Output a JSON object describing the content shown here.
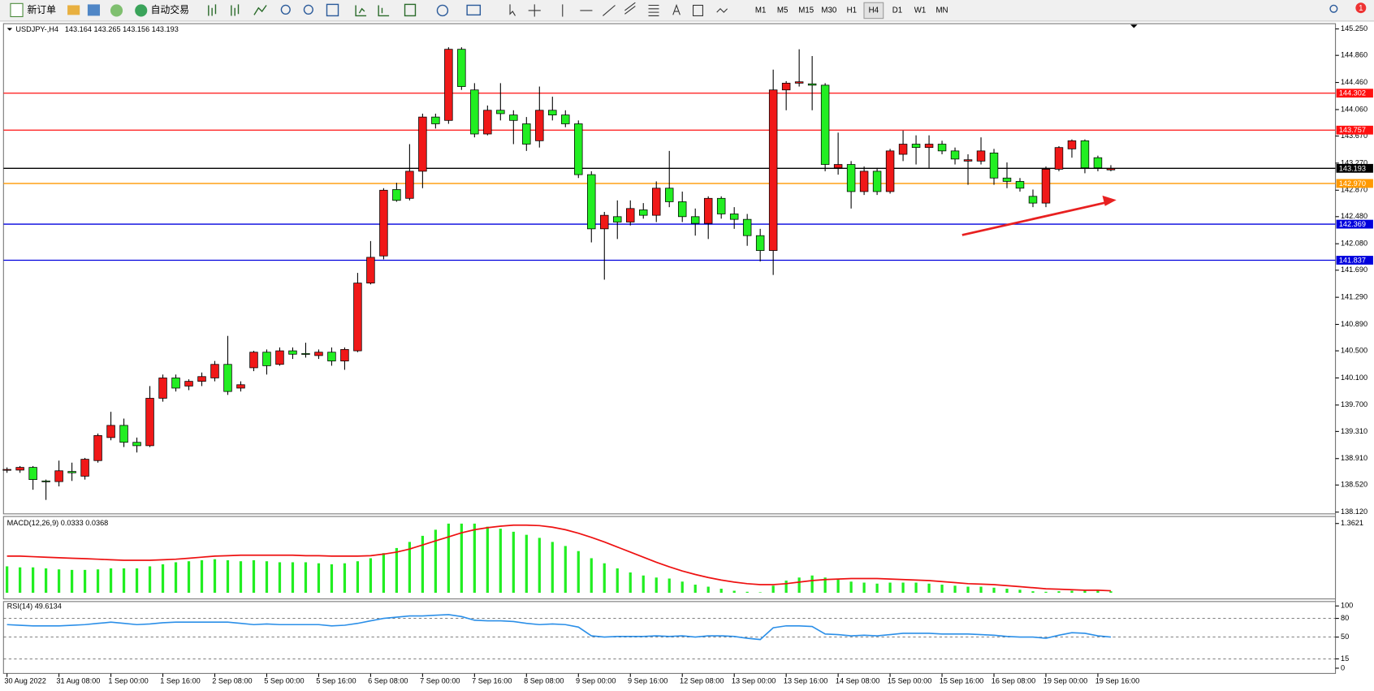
{
  "toolbar": {
    "buttons": [
      "新订单",
      "自动交易"
    ],
    "timeframes": [
      "M1",
      "M5",
      "M15",
      "M30",
      "H1",
      "H4",
      "D1",
      "W1",
      "MN"
    ],
    "active": "H4",
    "notifications": 1
  },
  "chart_data": [
    {
      "type": "candlestick",
      "title": "USDJPY-,H4",
      "subtitle": "143.164 143.265 143.156 143.193",
      "categories": [
        "30 Aug 2022",
        null,
        null,
        null,
        "31 Aug 08:00",
        null,
        null,
        null,
        "1 Sep 00:00",
        null,
        null,
        null,
        "1 Sep 16:00",
        null,
        null,
        null,
        "2 Sep 08:00",
        null,
        null,
        null,
        "5 Sep 00:00",
        null,
        null,
        null,
        "5 Sep 16:00",
        null,
        null,
        null,
        "6 Sep 08:00",
        null,
        null,
        null,
        "7 Sep 00:00",
        null,
        null,
        null,
        "7 Sep 16:00",
        null,
        null,
        null,
        "8 Sep 08:00",
        null,
        null,
        null,
        "9 Sep 00:00",
        null,
        null,
        null,
        "9 Sep 16:00",
        null,
        null,
        null,
        "12 Sep 08:00",
        null,
        null,
        null,
        "13 Sep 00:00",
        null,
        null,
        null,
        "13 Sep 16:00",
        null,
        null,
        null,
        "14 Sep 08:00",
        null,
        null,
        null,
        "15 Sep 00:00",
        null,
        null,
        null,
        "15 Sep 16:00",
        null,
        null,
        null,
        "16 Sep 08:00",
        null,
        null,
        null,
        "19 Sep 00:00",
        null,
        null,
        null,
        "19 Sep 16:00",
        null
      ],
      "open": [
        138.74,
        138.74,
        138.78,
        138.58,
        138.57,
        138.72,
        138.65,
        138.88,
        139.22,
        139.4,
        139.15,
        139.1,
        139.8,
        140.1,
        139.98,
        140.05,
        140.1,
        140.3,
        139.95,
        140.25,
        140.48,
        140.3,
        140.5,
        140.46,
        140.43,
        140.48,
        140.35,
        140.5,
        141.5,
        141.9,
        142.88,
        142.75,
        143.15,
        143.95,
        143.9,
        144.95,
        144.35,
        143.7,
        144.05,
        143.98,
        143.85,
        143.6,
        144.05,
        143.98,
        143.85,
        143.1,
        142.3,
        142.48,
        142.4,
        142.58,
        142.5,
        142.9,
        142.7,
        142.48,
        142.38,
        142.75,
        142.52,
        142.44,
        142.2,
        141.98,
        144.35,
        144.45,
        144.44,
        144.42,
        143.2,
        143.25,
        142.85,
        143.15,
        142.85,
        143.4,
        143.55,
        143.5,
        143.55,
        143.45,
        143.3,
        143.3,
        143.42,
        143.05,
        143.0,
        142.78,
        142.68,
        143.18,
        143.48,
        143.6,
        143.35,
        143.17
      ],
      "high": [
        138.78,
        138.8,
        138.8,
        138.6,
        138.88,
        138.85,
        138.92,
        139.28,
        139.6,
        139.5,
        139.22,
        139.98,
        140.15,
        140.15,
        140.08,
        140.18,
        140.35,
        140.72,
        140.05,
        140.5,
        140.52,
        140.55,
        140.55,
        140.62,
        140.52,
        140.55,
        140.55,
        141.65,
        142.12,
        142.9,
        142.98,
        143.55,
        144.0,
        144.0,
        144.98,
        144.98,
        144.45,
        144.12,
        144.45,
        144.05,
        143.95,
        144.4,
        144.25,
        144.05,
        143.9,
        143.15,
        142.55,
        142.72,
        142.72,
        142.68,
        143.0,
        143.45,
        142.85,
        142.6,
        142.78,
        142.78,
        142.62,
        142.52,
        142.3,
        144.65,
        144.48,
        144.95,
        144.85,
        144.45,
        143.72,
        143.3,
        143.22,
        143.2,
        143.48,
        143.75,
        143.68,
        143.68,
        143.6,
        143.5,
        143.4,
        143.65,
        143.48,
        143.28,
        143.05,
        142.88,
        143.22,
        143.52,
        143.62,
        143.62,
        143.38,
        143.24
      ],
      "low": [
        138.7,
        138.7,
        138.45,
        138.3,
        138.5,
        138.58,
        138.6,
        138.85,
        139.18,
        139.08,
        139.0,
        139.08,
        139.75,
        139.9,
        139.92,
        139.98,
        140.05,
        139.85,
        139.9,
        140.2,
        140.15,
        140.28,
        140.38,
        140.4,
        140.38,
        140.28,
        140.22,
        140.48,
        141.48,
        141.85,
        142.7,
        142.72,
        142.9,
        143.78,
        143.85,
        144.35,
        143.65,
        143.68,
        143.9,
        143.55,
        143.45,
        143.5,
        143.9,
        143.8,
        143.05,
        142.1,
        141.55,
        142.15,
        142.35,
        142.45,
        142.4,
        142.62,
        142.4,
        142.2,
        142.15,
        142.45,
        142.3,
        142.05,
        141.82,
        141.62,
        144.05,
        144.4,
        144.05,
        143.15,
        143.1,
        142.6,
        142.8,
        142.8,
        142.82,
        143.3,
        143.25,
        143.2,
        143.4,
        143.25,
        142.95,
        143.25,
        142.95,
        142.9,
        142.85,
        142.62,
        142.62,
        143.15,
        143.35,
        143.12,
        143.15,
        143.15
      ],
      "close": [
        138.75,
        138.78,
        138.6,
        138.57,
        138.73,
        138.7,
        138.9,
        139.25,
        139.4,
        139.15,
        139.1,
        139.8,
        140.1,
        139.95,
        140.05,
        140.12,
        140.3,
        139.9,
        140.0,
        140.48,
        140.28,
        140.5,
        140.45,
        140.45,
        140.48,
        140.35,
        140.52,
        141.5,
        141.88,
        142.87,
        142.72,
        143.15,
        143.95,
        143.85,
        144.95,
        144.4,
        143.7,
        144.05,
        144.0,
        143.9,
        143.55,
        144.05,
        143.98,
        143.85,
        143.1,
        142.3,
        142.5,
        142.4,
        142.6,
        142.5,
        142.9,
        142.7,
        142.48,
        142.38,
        142.75,
        142.52,
        142.44,
        142.2,
        141.98,
        144.35,
        144.45,
        144.47,
        144.42,
        143.25,
        143.25,
        142.85,
        143.15,
        142.85,
        143.45,
        143.55,
        143.5,
        143.55,
        143.45,
        143.33,
        143.32,
        143.45,
        143.05,
        143.0,
        142.9,
        142.68,
        143.18,
        143.5,
        143.6,
        143.2,
        143.2,
        143.19
      ],
      "up_color": "#f01818",
      "down_color": "#22ee22",
      "ylim": [
        138.12,
        145.25
      ],
      "yticks": [
        {
          "value": 145.25,
          "label": "145.250"
        },
        {
          "value": 144.86,
          "label": "144.860"
        },
        {
          "value": 144.46,
          "label": "144.460"
        },
        {
          "value": 144.06,
          "label": "144.060"
        },
        {
          "value": 143.67,
          "label": "143.670"
        },
        {
          "value": 143.27,
          "label": "143.270"
        },
        {
          "value": 142.87,
          "label": "142.870"
        },
        {
          "value": 142.48,
          "label": "142.480"
        },
        {
          "value": 142.08,
          "label": "142.080"
        },
        {
          "value": 141.69,
          "label": "141.690"
        },
        {
          "value": 141.29,
          "label": "141.290"
        },
        {
          "value": 140.89,
          "label": "140.890"
        },
        {
          "value": 140.5,
          "label": "140.500"
        },
        {
          "value": 140.1,
          "label": "140.100"
        },
        {
          "value": 139.7,
          "label": "139.700"
        },
        {
          "value": 139.31,
          "label": "139.310"
        },
        {
          "value": 138.91,
          "label": "138.910"
        },
        {
          "value": 138.52,
          "label": "138.520"
        },
        {
          "value": 138.12,
          "label": "138.120"
        }
      ],
      "levels": [
        {
          "value": 144.302,
          "label": "144.302",
          "color": "#ff1010"
        },
        {
          "value": 143.757,
          "label": "143.757",
          "color": "#ff1010"
        },
        {
          "value": 143.193,
          "label": "143.193",
          "color": "#000000"
        },
        {
          "value": 142.97,
          "label": "142.970",
          "color": "#ff9900"
        },
        {
          "value": 142.369,
          "label": "142.369",
          "color": "#0000dd"
        },
        {
          "value": 141.837,
          "label": "141.837",
          "color": "#0000dd"
        }
      ]
    },
    {
      "type": "macd",
      "title": "MACD(12,26,9) 0.0333 0.0368",
      "histogram": [
        0.52,
        0.5,
        0.5,
        0.48,
        0.46,
        0.45,
        0.45,
        0.46,
        0.48,
        0.48,
        0.48,
        0.52,
        0.56,
        0.6,
        0.62,
        0.64,
        0.66,
        0.64,
        0.62,
        0.64,
        0.62,
        0.6,
        0.6,
        0.6,
        0.58,
        0.56,
        0.58,
        0.62,
        0.68,
        0.78,
        0.88,
        1.0,
        1.12,
        1.24,
        1.36,
        1.36,
        1.36,
        1.3,
        1.26,
        1.2,
        1.14,
        1.08,
        1.0,
        0.92,
        0.82,
        0.68,
        0.58,
        0.48,
        0.4,
        0.34,
        0.3,
        0.28,
        0.22,
        0.16,
        0.12,
        0.08,
        0.04,
        0.02,
        0.01,
        0.14,
        0.24,
        0.3,
        0.34,
        0.3,
        0.26,
        0.22,
        0.2,
        0.18,
        0.2,
        0.2,
        0.2,
        0.18,
        0.16,
        0.14,
        0.12,
        0.12,
        0.1,
        0.08,
        0.06,
        0.03,
        0.02,
        0.03,
        0.04,
        0.05,
        0.04,
        0.03
      ],
      "signal": [
        0.72,
        0.72,
        0.71,
        0.7,
        0.69,
        0.68,
        0.67,
        0.66,
        0.65,
        0.64,
        0.64,
        0.64,
        0.65,
        0.66,
        0.68,
        0.7,
        0.72,
        0.73,
        0.74,
        0.74,
        0.74,
        0.74,
        0.74,
        0.73,
        0.73,
        0.72,
        0.72,
        0.72,
        0.73,
        0.76,
        0.8,
        0.86,
        0.94,
        1.02,
        1.1,
        1.18,
        1.24,
        1.28,
        1.31,
        1.33,
        1.33,
        1.32,
        1.29,
        1.24,
        1.17,
        1.09,
        1.0,
        0.9,
        0.8,
        0.7,
        0.6,
        0.51,
        0.43,
        0.36,
        0.3,
        0.25,
        0.21,
        0.18,
        0.16,
        0.16,
        0.18,
        0.21,
        0.24,
        0.26,
        0.27,
        0.28,
        0.28,
        0.28,
        0.27,
        0.26,
        0.25,
        0.24,
        0.22,
        0.2,
        0.18,
        0.17,
        0.16,
        0.14,
        0.12,
        0.1,
        0.08,
        0.07,
        0.06,
        0.05,
        0.05,
        0.04
      ],
      "histogram_color": "#22ee22",
      "signal_color": "#ee1111",
      "ylim": [
        0,
        1.3621
      ],
      "yticks": [
        1.3621
      ]
    },
    {
      "type": "line",
      "title": "RSI(14) 49.6134",
      "values": [
        70,
        69,
        68,
        68,
        68,
        69,
        70,
        72,
        74,
        72,
        70,
        71,
        73,
        74,
        74,
        74,
        74,
        74,
        72,
        70,
        71,
        70,
        70,
        70,
        70,
        68,
        69,
        72,
        76,
        80,
        82,
        84,
        84,
        85,
        86,
        83,
        77,
        76,
        76,
        75,
        72,
        70,
        71,
        70,
        66,
        52,
        50,
        51,
        51,
        51,
        52,
        51,
        52,
        50,
        52,
        52,
        51,
        48,
        46,
        65,
        68,
        68,
        67,
        55,
        54,
        52,
        53,
        52,
        54,
        56,
        56,
        56,
        55,
        55,
        55,
        54,
        53,
        51,
        50,
        50,
        48,
        53,
        57,
        56,
        52,
        50
      ],
      "color": "#2b8fe8",
      "ylim": [
        0,
        100
      ],
      "yticks": [
        100,
        80,
        50,
        15,
        0
      ],
      "grid": "dashed"
    }
  ]
}
